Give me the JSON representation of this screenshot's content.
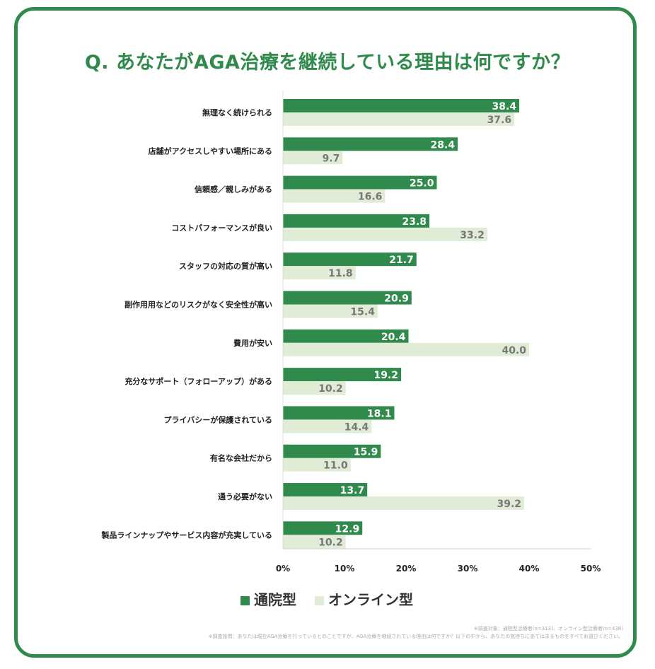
{
  "chart_data": {
    "type": "bar",
    "orientation": "horizontal",
    "title": "Q. あなたがAGA治療を継続している理由は何ですか？",
    "categories": [
      "無理なく続けられる",
      "店舗がアクセスしやすい場所にある",
      "信頼感／親しみがある",
      "コストパフォーマンスが良い",
      "スタッフの対応の質が高い",
      "副作用用などのリスクがなく安全性が高い",
      "費用が安い",
      "充分なサポート（フォローアップ）がある",
      "プライバシーが保護されている",
      "有名な会社だから",
      "通う必要がない",
      "製品ラインナップやサービス内容が充実している"
    ],
    "series": [
      {
        "name": "通院型",
        "color": "#2f8a4c",
        "values": [
          38.4,
          28.4,
          25.0,
          23.8,
          21.7,
          20.9,
          20.4,
          19.2,
          18.1,
          15.9,
          13.7,
          12.9
        ]
      },
      {
        "name": "オンライン型",
        "color": "#e0ecd6",
        "values": [
          37.6,
          9.7,
          16.6,
          33.2,
          11.8,
          15.4,
          40.0,
          10.2,
          14.4,
          11.0,
          39.2,
          10.2
        ]
      }
    ],
    "xlim": [
      0,
      50
    ],
    "xticks": [
      "0%",
      "10%",
      "20%",
      "30%",
      "40%",
      "50%"
    ],
    "grid": false,
    "legend": "bottom"
  },
  "notes": [
    "※調査対象：通院型治療者(n=313)、オンライン型治療者(n=438)",
    "※調査設問：あなたは現在AGA治療を行っているとのことですが、AGA治療を継続されている理由は何ですか？以下の中から、あなたの気持ちにあてはまるものをすべてお選びください。"
  ]
}
